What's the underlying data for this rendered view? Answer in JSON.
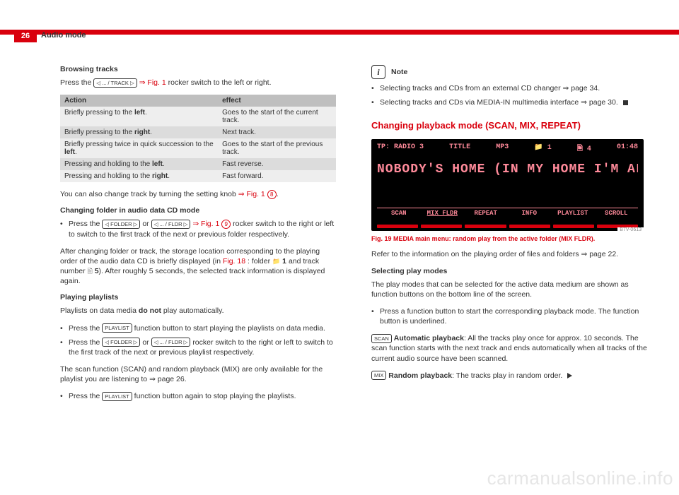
{
  "page": {
    "number": "26",
    "section": "Audio mode"
  },
  "left": {
    "h_browsing": "Browsing tracks",
    "p_press_track": "Press the ",
    "badge_track": "◁ ... / TRACK ▷",
    "fig1": " ⇒ Fig. 1",
    "p_press_track_tail": " rocker switch to the left or right.",
    "table": {
      "h_action": "Action",
      "h_effect": "effect",
      "rows": [
        {
          "a1": "Briefly pressing to the ",
          "a2": "left",
          "a3": ".",
          "e": "Goes to the start of the current track."
        },
        {
          "a1": "Briefly pressing to the ",
          "a2": "right",
          "a3": ".",
          "e": "Next track."
        },
        {
          "a1": "Briefly pressing twice in quick succession to the ",
          "a2": "left",
          "a3": ".",
          "e": "Goes to the start of the previous track."
        },
        {
          "a1": "Pressing and holding to the ",
          "a2": "left",
          "a3": ".",
          "e": "Fast reverse."
        },
        {
          "a1": "Pressing and holding to the ",
          "a2": "right",
          "a3": ".",
          "e": "Fast forward."
        }
      ]
    },
    "p_knob_a": "You can also change track by turning the setting knob ",
    "knob_fig": "⇒ Fig. 1 ",
    "knob_num": "8",
    "p_knob_b": ".",
    "h_folder": "Changing folder in audio data CD mode",
    "li_folder_a": "Press the ",
    "badge_folder": "◁ FOLDER ▷",
    "or": " or ",
    "badge_fldr": "◁ ... / FLDR ▷",
    "li_folder_fig": " ⇒ Fig. 1 ",
    "folder_num": "9",
    "li_folder_b": " rocker switch to the right or left to switch to the first track of the next or previous folder respectively.",
    "p_after_a": "After changing folder or track, the storage location corresponding to the playing order of the audio data CD is briefly displayed (in ",
    "p_after_fig18": "Fig. 18",
    "p_after_b": ": folder ",
    "folder_1": "1",
    "p_after_c": " and track number ",
    "track_5": "5",
    "p_after_d": "). After roughly 5 seconds, the selected track information is displayed again.",
    "h_playlists": "Playing playlists",
    "p_playlists_a": "Playlists on data media ",
    "p_playlists_b": "do not",
    "p_playlists_c": " play automatically.",
    "li_pl1_a": "Press the ",
    "badge_playlist": "PLAYLIST",
    "li_pl1_b": " function button to start playing the playlists on data media.",
    "li_pl2_a": "Press the ",
    "li_pl2_b": " rocker switch to the right or left to switch to the first track of the next or previous playlist respectively.",
    "p_scan": "The scan function (SCAN) and random playback (MIX) are only available for the playlist you are listening to ⇒ page 26.",
    "li_pl3_a": "Press the ",
    "li_pl3_b": " function button again to stop playing the playlists."
  },
  "right": {
    "note_label": "Note",
    "note1": "Selecting tracks and CDs from an external CD changer ⇒ page 34.",
    "note2": "Selecting tracks and CDs via MEDIA-IN multimedia interface ⇒ page 30.",
    "section": "Changing playback mode (SCAN, MIX, REPEAT)",
    "scr": {
      "tp": "TP: RADIO 3",
      "title": "TITLE",
      "mp3": "MP3",
      "f1": "📁 1",
      "f4": "🗎 4",
      "time": "01:48",
      "main": "NOBODY'S HOME (IN MY HOME I'M AL...",
      "tabs": [
        "SCAN",
        "MIX FLDR",
        "REPEAT",
        "INFO",
        "PLAYLIST",
        "SCROLL"
      ],
      "label": "B7V-0613"
    },
    "fig19": "Fig. 19   MEDIA main menu: random play from the active folder (MIX FLDR).",
    "p_refer": "Refer to the information on the playing order of files and folders ⇒ page 22.",
    "h_select": "Selecting play modes",
    "p_select": "The play modes that can be selected for the active data medium are shown as function buttons on the bottom line of the screen.",
    "li_press": "Press a function button to start the corresponding playback mode. The function button is underlined.",
    "badge_scan": "SCAN",
    "p_scan_a": " Automatic playback",
    "p_scan_b": ": All the tracks play once for approx. 10 seconds. The scan function starts with the next track and ends automatically when all tracks of the current audio source have been scanned.",
    "badge_mix": "MIX",
    "p_mix_a": " Random playback",
    "p_mix_b": ": The tracks play in random order."
  },
  "watermark": "carmanualsonline.info"
}
